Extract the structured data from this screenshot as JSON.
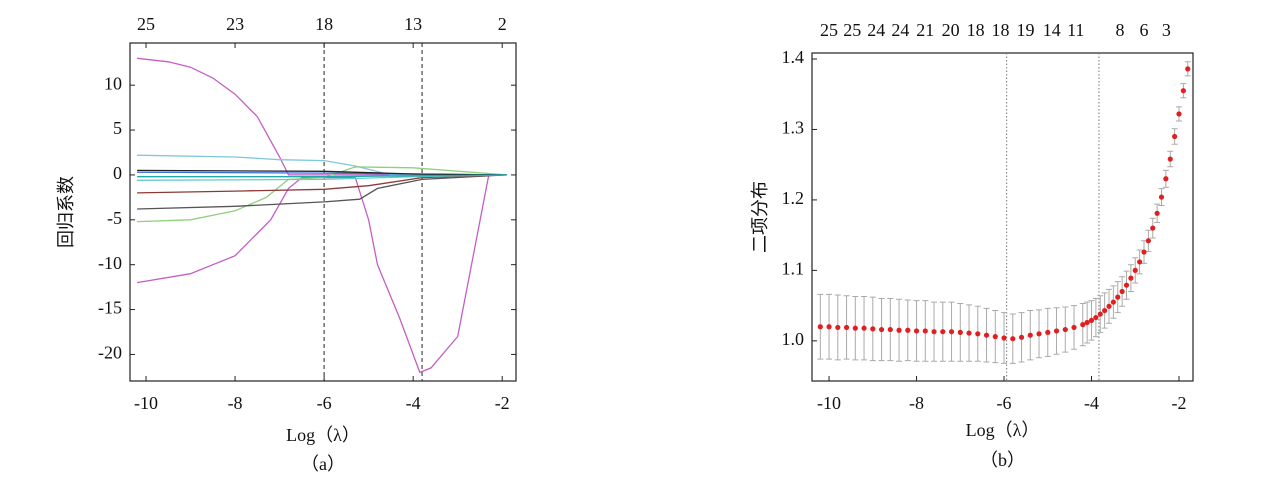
{
  "chart_data": [
    {
      "type": "line",
      "ylabel": "回归系数",
      "xlabel": "Log（λ）",
      "caption": "（a）",
      "xlim": [
        -10.36,
        -1.69
      ],
      "ylim": [
        -22.96,
        14.7
      ],
      "xticks": [
        -10,
        -8,
        -6,
        -4,
        -2
      ],
      "yticks": [
        10,
        5,
        0,
        -5,
        -10,
        -15,
        -20
      ],
      "top_ticks": [
        {
          "value": -10,
          "label": "25"
        },
        {
          "value": -8,
          "label": "23"
        },
        {
          "value": -6,
          "label": "18"
        },
        {
          "value": -4,
          "label": "13"
        },
        {
          "value": -2,
          "label": "2"
        }
      ],
      "vlines": [
        -6,
        -3.8
      ],
      "vline_style": "dashed",
      "series": [
        {
          "color": "#c45ec4",
          "x": [
            -10.2,
            -9.5,
            -9,
            -8.5,
            -8,
            -7.5,
            -7,
            -6.8,
            -6,
            -1.9
          ],
          "values": [
            13,
            12.6,
            12,
            10.8,
            9,
            6.5,
            2,
            0,
            0,
            0
          ]
        },
        {
          "color": "#c45ec4",
          "x": [
            -10.2,
            -9,
            -8,
            -7.2,
            -6.8,
            -6.5,
            -5.3,
            -5,
            -4.8,
            -4.3,
            -3.85,
            -3.6,
            -3,
            -2.3,
            -1.9
          ],
          "values": [
            -12,
            -11,
            -9,
            -5,
            -1.5,
            -0.3,
            -0.3,
            -5,
            -10,
            -16,
            -22,
            -21.5,
            -18,
            0,
            0
          ]
        },
        {
          "color": "#7fc8dc",
          "x": [
            -10.2,
            -8,
            -7,
            -6,
            -5.3,
            -4.5,
            -1.9
          ],
          "values": [
            2.2,
            2,
            1.7,
            1.6,
            1,
            0,
            0
          ]
        },
        {
          "color": "#8fcf7f",
          "x": [
            -10.2,
            -9,
            -8,
            -7.3,
            -6.8,
            -6,
            -5.3,
            -4,
            -1.9
          ],
          "values": [
            -5.2,
            -5,
            -4,
            -2.5,
            -0.5,
            -0.3,
            0.9,
            0.8,
            0
          ]
        },
        {
          "color": "#555555",
          "x": [
            -10.2,
            -8,
            -6,
            -5.2,
            -4.8,
            -3.8,
            -1.9
          ],
          "values": [
            -3.8,
            -3.5,
            -3,
            -2.7,
            -1.5,
            -0.5,
            0
          ]
        },
        {
          "color": "#8b3a3a",
          "x": [
            -10.2,
            -8,
            -6,
            -5,
            -3.8,
            -1.9
          ],
          "values": [
            -2,
            -1.8,
            -1.6,
            -1.2,
            -0.3,
            0
          ]
        },
        {
          "color": "#3a6fd8",
          "x": [
            -10.2,
            -6,
            -4,
            -1.9
          ],
          "values": [
            0.3,
            0.2,
            0.1,
            0
          ]
        },
        {
          "color": "#222222",
          "x": [
            -10.2,
            -6,
            -4,
            -1.9
          ],
          "values": [
            0.5,
            0.4,
            0.1,
            0
          ]
        },
        {
          "color": "#66cccc",
          "x": [
            -10.2,
            -6,
            -4,
            -1.9
          ],
          "values": [
            -0.6,
            -0.5,
            -0.2,
            0
          ]
        },
        {
          "color": "#22aaaa",
          "x": [
            -10.2,
            -6,
            -4,
            -1.9
          ],
          "values": [
            -0.2,
            -0.2,
            -0.1,
            0
          ]
        }
      ]
    },
    {
      "type": "errorbar",
      "ylabel": "二项分布",
      "xlabel": "Log（λ）",
      "caption": "（b）",
      "xlim": [
        -10.39,
        -1.68
      ],
      "ylim": [
        0.943,
        1.4085
      ],
      "xticks": [
        -10,
        -8,
        -6,
        -4,
        -2
      ],
      "yticks": [
        {
          "value": 1,
          "label": "1.0"
        },
        1.1,
        1.2,
        1.3,
        1.4
      ],
      "top_ticks": [
        {
          "value": -10,
          "label": "25"
        },
        {
          "value": -9.47,
          "label": "25"
        },
        {
          "value": -8.92,
          "label": "24"
        },
        {
          "value": -8.37,
          "label": "24"
        },
        {
          "value": -7.8,
          "label": "21"
        },
        {
          "value": -7.22,
          "label": "20"
        },
        {
          "value": -6.65,
          "label": "18"
        },
        {
          "value": -6.08,
          "label": "18"
        },
        {
          "value": -5.51,
          "label": "19"
        },
        {
          "value": -4.91,
          "label": "14"
        },
        {
          "value": -4.36,
          "label": "11"
        },
        {
          "value": -3.35,
          "label": "8"
        },
        {
          "value": -2.8,
          "label": "6"
        },
        {
          "value": -2.29,
          "label": "3"
        }
      ],
      "vlines": [
        -5.94,
        -3.83
      ],
      "vline_style": "dotted",
      "color": "#e02020",
      "error_color": "#aaaaaa",
      "x": [
        -10.2,
        -10.0,
        -9.8,
        -9.6,
        -9.4,
        -9.2,
        -9.0,
        -8.8,
        -8.6,
        -8.4,
        -8.2,
        -8.0,
        -7.8,
        -7.6,
        -7.4,
        -7.2,
        -7.0,
        -6.8,
        -6.6,
        -6.4,
        -6.2,
        -6.0,
        -5.8,
        -5.6,
        -5.4,
        -5.2,
        -5.0,
        -4.8,
        -4.6,
        -4.4,
        -4.2,
        -4.1,
        -4.0,
        -3.9,
        -3.8,
        -3.7,
        -3.6,
        -3.5,
        -3.4,
        -3.3,
        -3.2,
        -3.1,
        -3.0,
        -2.9,
        -2.8,
        -2.7,
        -2.6,
        -2.5,
        -2.4,
        -2.3,
        -2.2,
        -2.1,
        -2.0,
        -1.9,
        -1.8
      ],
      "values": [
        1.02,
        1.02,
        1.019,
        1.019,
        1.018,
        1.018,
        1.017,
        1.016,
        1.016,
        1.015,
        1.015,
        1.014,
        1.014,
        1.013,
        1.013,
        1.013,
        1.012,
        1.011,
        1.01,
        1.008,
        1.006,
        1.004,
        1.003,
        1.005,
        1.008,
        1.01,
        1.012,
        1.014,
        1.016,
        1.019,
        1.023,
        1.026,
        1.029,
        1.033,
        1.038,
        1.043,
        1.049,
        1.055,
        1.062,
        1.07,
        1.079,
        1.089,
        1.1,
        1.112,
        1.126,
        1.142,
        1.16,
        1.181,
        1.204,
        1.23,
        1.258,
        1.29,
        1.322,
        1.355,
        1.386
      ],
      "errors": [
        0.046,
        0.046,
        0.046,
        0.045,
        0.045,
        0.045,
        0.045,
        0.044,
        0.044,
        0.044,
        0.043,
        0.043,
        0.043,
        0.042,
        0.042,
        0.042,
        0.041,
        0.04,
        0.039,
        0.038,
        0.037,
        0.036,
        0.035,
        0.035,
        0.035,
        0.034,
        0.034,
        0.033,
        0.032,
        0.031,
        0.03,
        0.029,
        0.028,
        0.027,
        0.026,
        0.025,
        0.024,
        0.023,
        0.022,
        0.021,
        0.02,
        0.019,
        0.018,
        0.017,
        0.016,
        0.015,
        0.014,
        0.013,
        0.012,
        0.012,
        0.011,
        0.011,
        0.01,
        0.01,
        0.01
      ]
    }
  ]
}
